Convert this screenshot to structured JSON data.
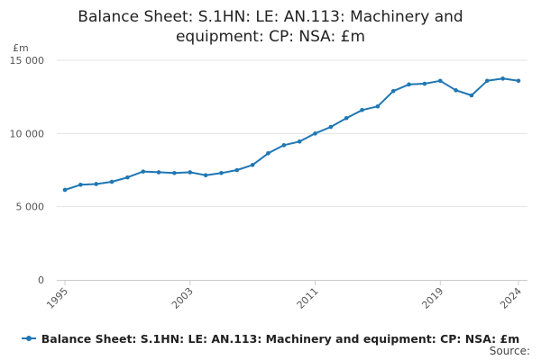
{
  "chart_data": {
    "type": "line",
    "title_lines": [
      "Balance Sheet: S.1HN: LE: AN.113: Machinery and",
      "equipment: CP: NSA: £m"
    ],
    "ylabel": "£m",
    "ylim": [
      0,
      15000
    ],
    "yticks": [
      0,
      5000,
      10000,
      15000
    ],
    "ytick_labels": [
      "0",
      "5 000",
      "10 000",
      "15 000"
    ],
    "xlim": [
      1995,
      2024
    ],
    "xticks": [
      1995,
      2003,
      2011,
      2019,
      2024
    ],
    "xtick_labels": [
      "1995",
      "2003",
      "2011",
      "2019",
      "2024"
    ],
    "grid": true,
    "legend_position": "bottom",
    "series": [
      {
        "name": "Balance Sheet: S.1HN: LE: AN.113: Machinery and equipment: CP: NSA: £m",
        "color": "#1f77b4",
        "x": [
          1995,
          1996,
          1997,
          1998,
          1999,
          2000,
          2001,
          2002,
          2003,
          2004,
          2005,
          2006,
          2007,
          2008,
          2009,
          2010,
          2011,
          2012,
          2013,
          2014,
          2015,
          2016,
          2017,
          2018,
          2019,
          2020,
          2021,
          2022,
          2023,
          2024
        ],
        "values": [
          6150,
          6500,
          6550,
          6700,
          7000,
          7400,
          7350,
          7300,
          7350,
          7150,
          7300,
          7500,
          7850,
          8650,
          9200,
          9450,
          10000,
          10450,
          11050,
          11600,
          11850,
          12900,
          13350,
          13400,
          13600,
          12950,
          12600,
          13600,
          13750,
          13600
        ]
      }
    ]
  },
  "source_label": "Source:"
}
